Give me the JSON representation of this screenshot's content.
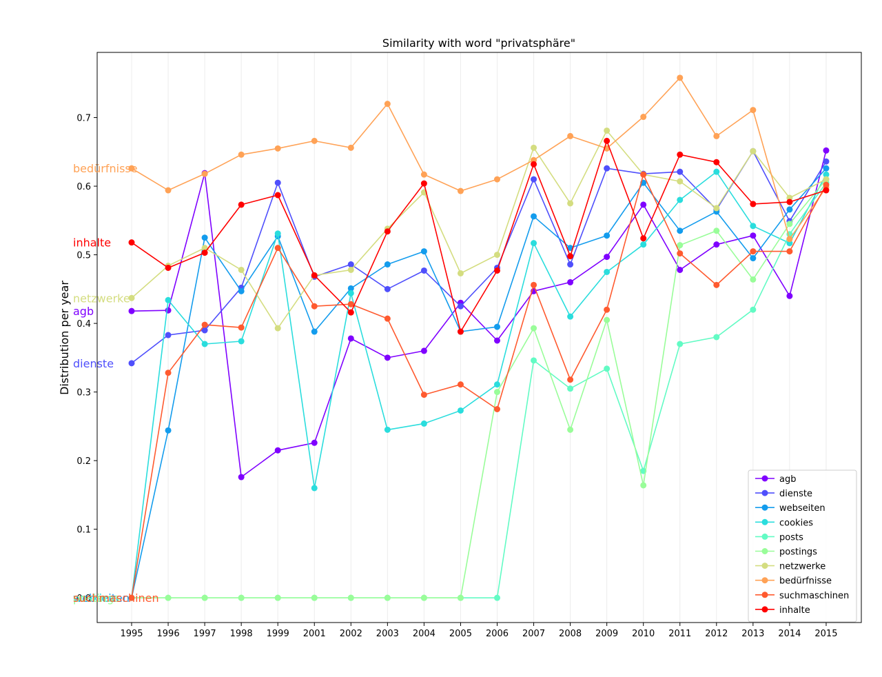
{
  "chart_data": {
    "type": "line",
    "title": "Similarity with word \"privatsphäre\"",
    "xlabel": "",
    "ylabel": "Distribution per year",
    "categories": [
      "1995",
      "1996",
      "1997",
      "1998",
      "1999",
      "2001",
      "2002",
      "2003",
      "2004",
      "2005",
      "2006",
      "2007",
      "2008",
      "2009",
      "2010",
      "2011",
      "2012",
      "2013",
      "2014",
      "2015"
    ],
    "ylim": [
      -0.036,
      0.795
    ],
    "yticks": [
      0.1,
      0.2,
      0.3,
      0.4,
      0.5,
      0.6,
      0.7
    ],
    "ytick_labels": [
      "0.1",
      "0.2",
      "0.3",
      "0.4",
      "0.5",
      "0.6",
      "0.7"
    ],
    "zero_tick_label": "0.0",
    "grid": "vertical",
    "legend_position": "lower-right",
    "series": [
      {
        "name": "agb",
        "color": "#7f00ff",
        "label_value": 0.418,
        "values": [
          0.418,
          0.419,
          0.619,
          0.176,
          0.215,
          0.226,
          0.378,
          0.35,
          0.36,
          0.43,
          0.375,
          0.447,
          0.46,
          0.497,
          0.573,
          0.478,
          0.515,
          0.528,
          0.44,
          0.652
        ]
      },
      {
        "name": "dienste",
        "color": "#4f4ffc",
        "label_value": 0.342,
        "values": [
          0.342,
          0.383,
          0.39,
          0.452,
          0.605,
          0.468,
          0.486,
          0.45,
          0.477,
          0.425,
          0.481,
          0.61,
          0.486,
          0.626,
          0.618,
          0.621,
          0.566,
          0.651,
          0.549,
          0.636
        ]
      },
      {
        "name": "webseiten",
        "color": "#139ced",
        "label_value": 0.0,
        "values": [
          0.0,
          0.244,
          0.525,
          0.447,
          0.527,
          0.388,
          0.451,
          0.486,
          0.505,
          0.388,
          0.395,
          0.556,
          0.51,
          0.528,
          0.605,
          0.535,
          0.563,
          0.495,
          0.566,
          0.626
        ]
      },
      {
        "name": "cookies",
        "color": "#2adddd",
        "label_value": 0.0,
        "values": [
          0.0,
          0.434,
          0.37,
          0.374,
          0.531,
          0.16,
          0.444,
          0.245,
          0.254,
          0.273,
          0.311,
          0.517,
          0.41,
          0.475,
          0.515,
          0.58,
          0.621,
          0.542,
          0.517,
          0.617
        ]
      },
      {
        "name": "posts",
        "color": "#62fbc4",
        "label_value": 0.0,
        "values": [
          0.0,
          0.0,
          0.0,
          0.0,
          0.0,
          0.0,
          0.0,
          0.0,
          0.0,
          0.0,
          0.0,
          0.346,
          0.305,
          0.334,
          0.185,
          0.37,
          0.38,
          0.42,
          0.53,
          0.605
        ]
      },
      {
        "name": "postings",
        "color": "#99fd99",
        "label_value": 0.0,
        "values": [
          0.0,
          0.0,
          0.0,
          0.0,
          0.0,
          0.0,
          0.0,
          0.0,
          0.0,
          0.0,
          0.3,
          0.393,
          0.245,
          0.405,
          0.164,
          0.514,
          0.535,
          0.464,
          0.545,
          0.61
        ]
      },
      {
        "name": "netzwerke",
        "color": "#d4dd80",
        "label_value": 0.437,
        "values": [
          0.437,
          0.484,
          0.51,
          0.478,
          0.393,
          0.47,
          0.478,
          0.538,
          0.591,
          0.473,
          0.5,
          0.656,
          0.575,
          0.681,
          0.617,
          0.607,
          0.568,
          0.651,
          0.583,
          0.61
        ]
      },
      {
        "name": "bedürfnisse",
        "color": "#ffa256",
        "label_value": 0.626,
        "values": [
          0.626,
          0.594,
          0.618,
          0.646,
          0.655,
          0.666,
          0.656,
          0.72,
          0.617,
          0.593,
          0.61,
          0.638,
          0.673,
          0.655,
          0.701,
          0.758,
          0.673,
          0.711,
          0.523,
          0.598
        ]
      },
      {
        "name": "suchmaschinen",
        "color": "#ff5a2f",
        "label_value": 0.0,
        "values": [
          0.0,
          0.328,
          0.398,
          0.394,
          0.51,
          0.425,
          0.428,
          0.407,
          0.296,
          0.311,
          0.275,
          0.456,
          0.318,
          0.42,
          0.617,
          0.502,
          0.456,
          0.505,
          0.505,
          0.602
        ]
      },
      {
        "name": "inhalte",
        "color": "#ff0000",
        "label_value": 0.518,
        "values": [
          0.518,
          0.481,
          0.503,
          0.573,
          0.587,
          0.47,
          0.416,
          0.534,
          0.604,
          0.388,
          0.477,
          0.632,
          0.498,
          0.666,
          0.524,
          0.646,
          0.635,
          0.574,
          0.577,
          0.594
        ]
      }
    ]
  }
}
